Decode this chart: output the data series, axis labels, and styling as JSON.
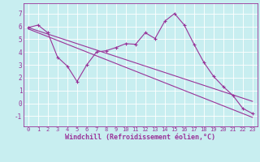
{
  "xlabel": "Windchill (Refroidissement éolien,°C)",
  "background_color": "#c8eef0",
  "grid_color": "#ffffff",
  "line_color": "#993399",
  "x_hours": [
    0,
    1,
    2,
    3,
    4,
    5,
    6,
    7,
    8,
    9,
    10,
    11,
    12,
    13,
    14,
    15,
    16,
    17,
    18,
    19,
    20,
    21,
    22,
    23
  ],
  "windchill": [
    5.9,
    6.1,
    5.5,
    3.6,
    2.9,
    1.7,
    3.0,
    4.0,
    4.1,
    4.35,
    4.65,
    4.6,
    5.5,
    5.05,
    6.4,
    7.0,
    6.1,
    4.6,
    3.2,
    2.1,
    1.3,
    0.6,
    -0.4,
    -0.8
  ],
  "trend1": [
    5.9,
    5.65,
    5.4,
    5.15,
    4.9,
    4.65,
    4.4,
    4.15,
    3.9,
    3.65,
    3.4,
    3.15,
    2.9,
    2.65,
    2.4,
    2.15,
    1.9,
    1.65,
    1.4,
    1.15,
    0.9,
    0.65,
    0.4,
    0.15
  ],
  "trend2": [
    5.8,
    5.5,
    5.2,
    4.9,
    4.6,
    4.3,
    4.0,
    3.7,
    3.4,
    3.1,
    2.8,
    2.5,
    2.2,
    1.9,
    1.6,
    1.3,
    1.0,
    0.7,
    0.4,
    0.1,
    -0.2,
    -0.5,
    -0.8,
    -1.1
  ],
  "ylim": [
    -1.8,
    7.8
  ],
  "xlim": [
    -0.5,
    23.5
  ],
  "yticks": [
    -1,
    0,
    1,
    2,
    3,
    4,
    5,
    6,
    7
  ],
  "xticks": [
    0,
    1,
    2,
    3,
    4,
    5,
    6,
    7,
    8,
    9,
    10,
    11,
    12,
    13,
    14,
    15,
    16,
    17,
    18,
    19,
    20,
    21,
    22,
    23
  ],
  "tick_color": "#993399",
  "label_fontsize": 5.5,
  "xlabel_fontsize": 6.0
}
